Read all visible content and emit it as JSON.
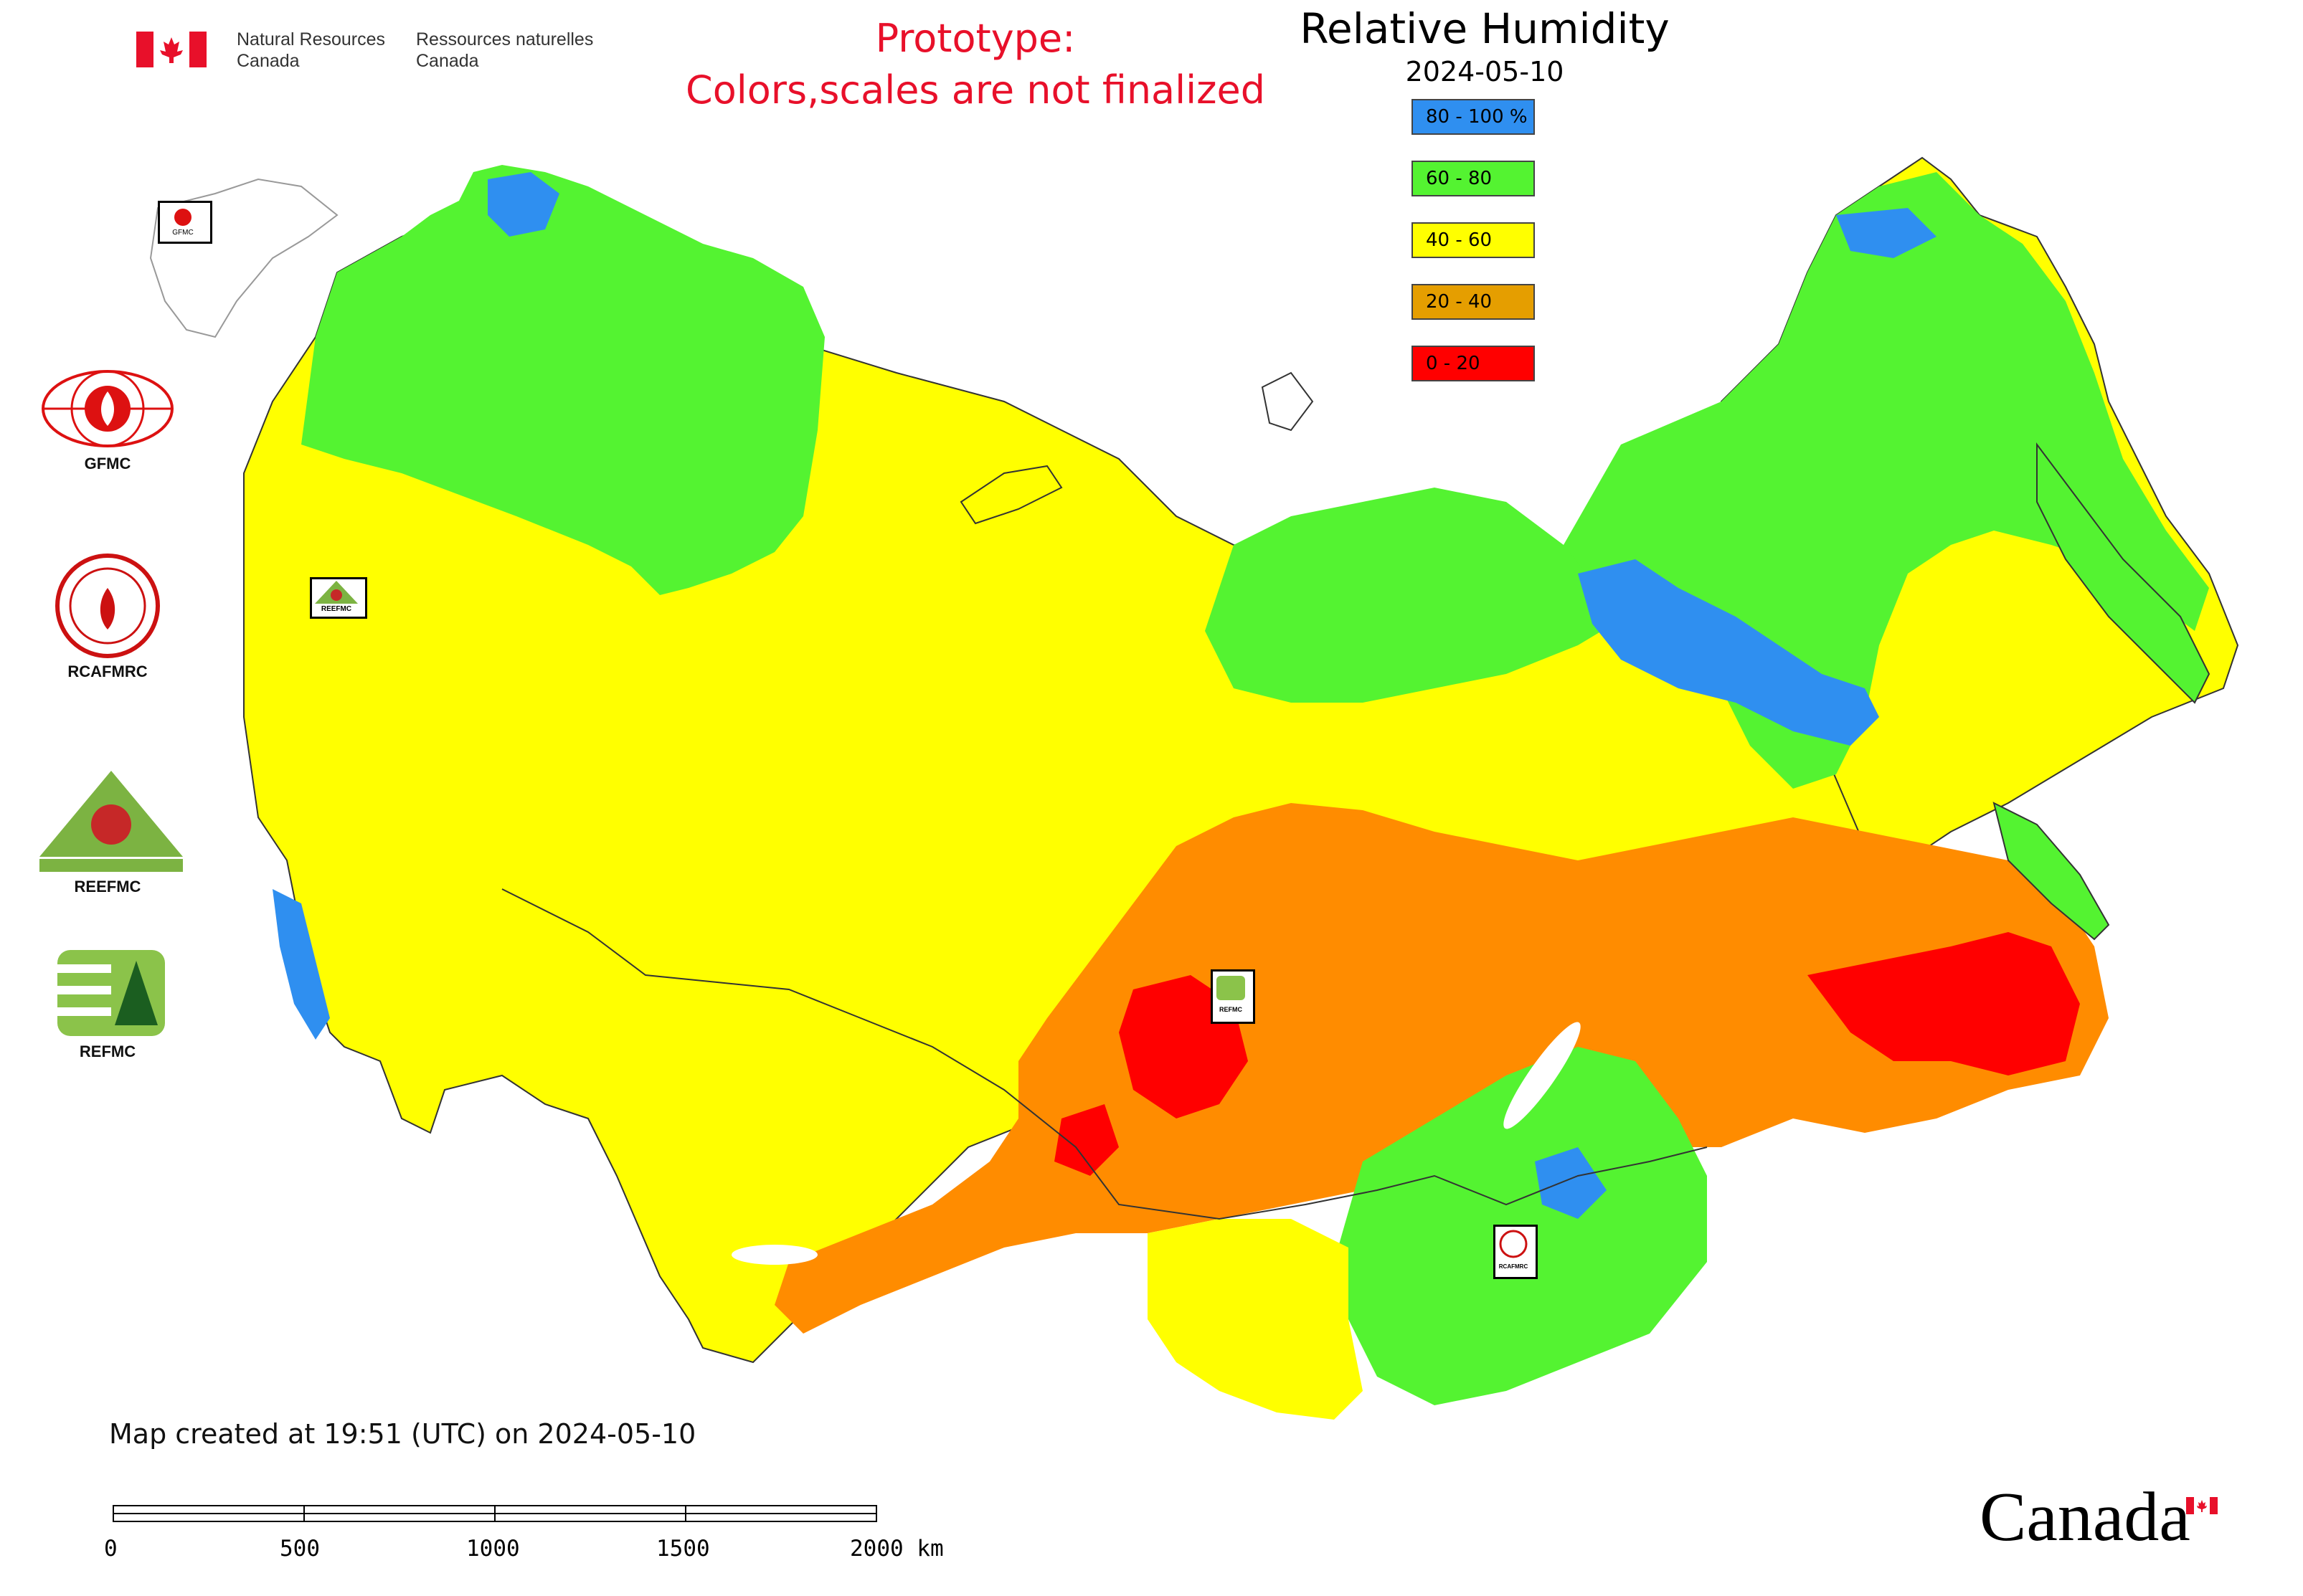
{
  "header": {
    "agency_en": "Natural Resources\nCanada",
    "agency_fr": "Ressources naturelles\nCanada",
    "notice_line1": "Prototype:",
    "notice_line2": "Colors,scales are not finalized",
    "title": "Relative Humidity",
    "date": "2024-05-10"
  },
  "legend": [
    {
      "label": "80 - 100 %",
      "color": "#2f8ff0"
    },
    {
      "label": "60 - 80",
      "color": "#54f331"
    },
    {
      "label": "40 - 60",
      "color": "#ffff00"
    },
    {
      "label": "20 - 40",
      "color": "#e59e00"
    },
    {
      "label": "0 - 20",
      "color": "#ff0000"
    }
  ],
  "map_colors": {
    "humid_blue": "#2f8ff0",
    "green": "#54f331",
    "yellow": "#ffff00",
    "orange": "#ff8c00",
    "red": "#ff0000",
    "border": "#333333"
  },
  "agencies": [
    {
      "label": "GFMC"
    },
    {
      "label": "RCAFMRC"
    },
    {
      "label": "REEFMC"
    },
    {
      "label": "REFMC"
    }
  ],
  "map_markers": {
    "gfmc": "GFMC",
    "reefmc": "REEFMC",
    "refmc": "REFMC",
    "rcafmrc": "RCAFMRC"
  },
  "footer": {
    "created": "Map created at 19:51 (UTC) on 2024-05-10",
    "scale": [
      "0",
      "500",
      "1000",
      "1500",
      "2000 km"
    ]
  },
  "brand": {
    "wordmark": "Canada"
  }
}
